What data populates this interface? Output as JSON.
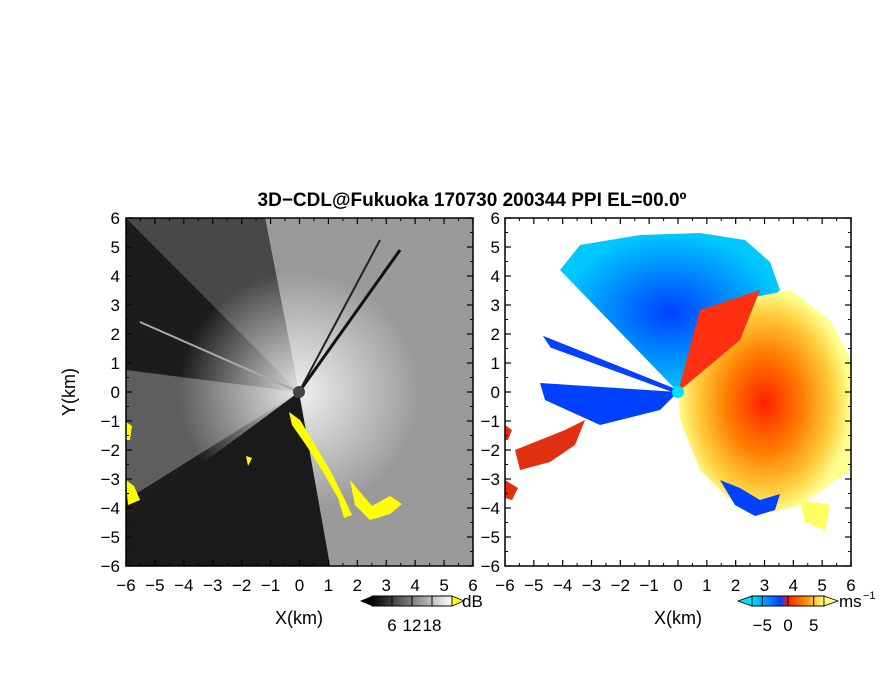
{
  "title": "3D−CDL@Fukuoka 170730 200344 PPI EL=00.0º",
  "chart_data": [
    {
      "type": "heatmap",
      "panel": "reflectivity",
      "xlabel": "X(km)",
      "ylabel": "Y(km)",
      "xlim": [
        -6,
        6
      ],
      "ylim": [
        -6,
        6
      ],
      "xticks": [
        "−6",
        "−5",
        "−4",
        "−3",
        "−2",
        "−1",
        "0",
        "1",
        "2",
        "3",
        "4",
        "5",
        "6"
      ],
      "yticks": [
        "6",
        "5",
        "4",
        "3",
        "2",
        "1",
        "0",
        "−1",
        "−2",
        "−3",
        "−4",
        "−5",
        "−6"
      ],
      "colorscale": "grayscale",
      "highlight_color": "#ffff00",
      "colorbar": {
        "unit": "dB",
        "ticks": [
          "6",
          "12",
          "18"
        ],
        "range": [
          0,
          24
        ]
      }
    },
    {
      "type": "heatmap",
      "panel": "doppler-velocity",
      "xlabel": "X(km)",
      "xlim": [
        -6,
        6
      ],
      "ylim": [
        -6,
        6
      ],
      "xticks": [
        "−6",
        "−5",
        "−4",
        "−3",
        "−2",
        "−1",
        "0",
        "1",
        "2",
        "3",
        "4",
        "5",
        "6"
      ],
      "yticks": [
        "6",
        "5",
        "4",
        "3",
        "2",
        "1",
        "0",
        "−1",
        "−2",
        "−3",
        "−4",
        "−5",
        "−6"
      ],
      "colorscale": [
        "#00e0ff",
        "#0050ff",
        "#ff2000",
        "#ffb000",
        "#ffff80"
      ],
      "colorbar": {
        "unit": "ms",
        "unit_exp": "−1",
        "ticks": [
          "−5",
          "0",
          "5"
        ],
        "range": [
          -7,
          7
        ]
      }
    }
  ]
}
